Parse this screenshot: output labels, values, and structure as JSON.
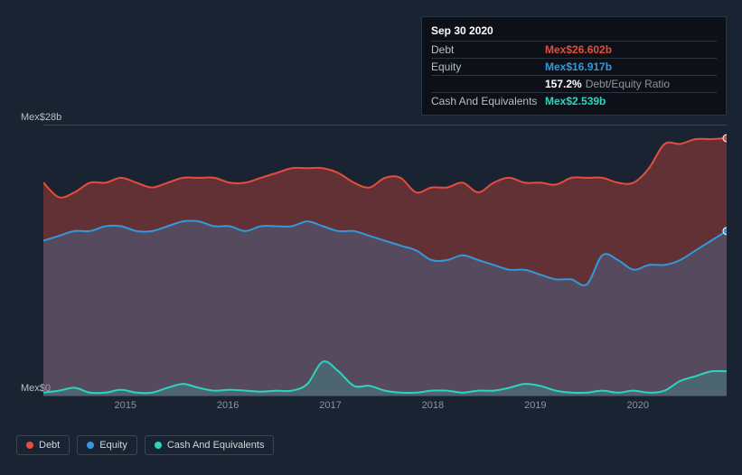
{
  "tooltip": {
    "date": "Sep 30 2020",
    "rows": [
      {
        "label": "Debt",
        "value": "Mex$26.602b",
        "color": "#e74c3c"
      },
      {
        "label": "Equity",
        "value": "Mex$16.917b",
        "color": "#3498db"
      }
    ],
    "ratio_pct": "157.2%",
    "ratio_label": "Debt/Equity Ratio",
    "cash_row": {
      "label": "Cash And Equivalents",
      "value": "Mex$2.539b",
      "color": "#2dd4bf"
    }
  },
  "chart": {
    "type": "area",
    "background_color": "#1a2332",
    "grid_color": "#3a4556",
    "y_axis": {
      "min": 0,
      "max": 28,
      "top_label": "Mex$28b",
      "bottom_label": "Mex$0"
    },
    "x_axis": {
      "ticks": [
        "2015",
        "2016",
        "2017",
        "2018",
        "2019",
        "2020"
      ],
      "tick_positions_pct": [
        12,
        27,
        42,
        57,
        72,
        87
      ]
    },
    "series": {
      "debt": {
        "name": "Debt",
        "color": "#e74c3c",
        "fill_opacity": 0.35,
        "points": [
          22,
          20.5,
          21,
          22,
          22,
          22.5,
          22,
          21.5,
          22,
          22.5,
          22.5,
          22.5,
          22,
          22,
          22.5,
          23,
          23.5,
          23.5,
          23.5,
          23,
          22,
          21.5,
          22.5,
          22.5,
          21,
          21.5,
          21.5,
          22,
          21,
          22,
          22.5,
          22,
          22,
          21.8,
          22.5,
          22.5,
          22.5,
          22,
          22,
          23.5,
          26,
          26,
          26.5,
          26.5,
          26.6
        ],
        "marker_end": {
          "x_pct": 100,
          "value": 26.6
        }
      },
      "equity": {
        "name": "Equity",
        "color": "#3498db",
        "fill_opacity": 0.25,
        "points": [
          16,
          16.5,
          17,
          17,
          17.5,
          17.5,
          17,
          17,
          17.5,
          18,
          18,
          17.5,
          17.5,
          17,
          17.5,
          17.5,
          17.5,
          18,
          17.5,
          17,
          17,
          16.5,
          16,
          15.5,
          15,
          14,
          14,
          14.5,
          14,
          13.5,
          13,
          13,
          12.5,
          12,
          12,
          11.5,
          14.5,
          14,
          13,
          13.5,
          13.5,
          14,
          15,
          16,
          17
        ],
        "marker_end": {
          "x_pct": 100,
          "value": 17
        }
      },
      "cash": {
        "name": "Cash And Equivalents",
        "color": "#2dd4bf",
        "fill_opacity": 0.2,
        "points": [
          0.3,
          0.5,
          0.8,
          0.3,
          0.3,
          0.6,
          0.3,
          0.3,
          0.8,
          1.2,
          0.8,
          0.5,
          0.6,
          0.5,
          0.4,
          0.5,
          0.5,
          1.2,
          3.5,
          2.5,
          1,
          1,
          0.5,
          0.3,
          0.3,
          0.5,
          0.5,
          0.3,
          0.5,
          0.5,
          0.8,
          1.2,
          1,
          0.5,
          0.3,
          0.3,
          0.5,
          0.3,
          0.5,
          0.3,
          0.5,
          1.5,
          2,
          2.5,
          2.5
        ]
      }
    }
  },
  "legend": {
    "items": [
      {
        "label": "Debt",
        "color": "#e74c3c"
      },
      {
        "label": "Equity",
        "color": "#3498db"
      },
      {
        "label": "Cash And Equivalents",
        "color": "#2dd4bf"
      }
    ]
  }
}
